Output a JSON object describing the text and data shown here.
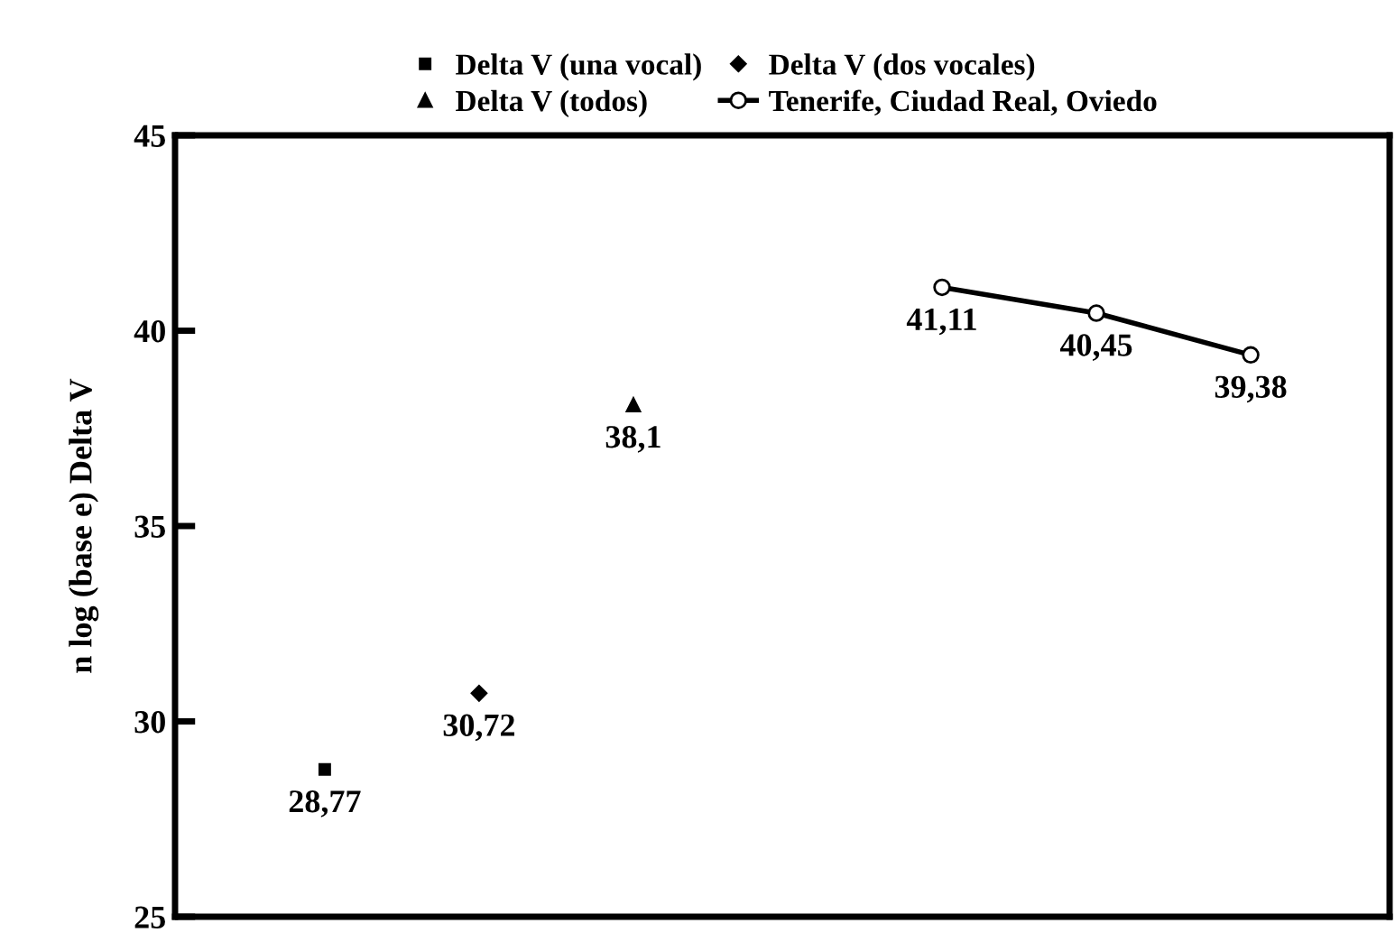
{
  "chart_data": {
    "type": "scatter",
    "ylabel": "n log (base e) Delta V",
    "categories": [
      null,
      null,
      null,
      null,
      null,
      null,
      null
    ],
    "ylim": [
      25,
      45
    ],
    "yticks": [
      25,
      30,
      35,
      40,
      45
    ],
    "tick_labels": "y",
    "grid": false,
    "legend": "top",
    "series": [
      {
        "name": "Delta V (una vocal)",
        "marker": "square",
        "color": "#000000",
        "values": [
          28.77,
          null,
          null,
          null,
          null,
          null,
          null
        ],
        "value_labels": [
          "28,77",
          null,
          null,
          null,
          null,
          null,
          null
        ]
      },
      {
        "name": "Delta V (dos vocales)",
        "marker": "diamond",
        "color": "#000000",
        "values": [
          null,
          30.72,
          null,
          null,
          null,
          null,
          null
        ],
        "value_labels": [
          null,
          "30,72",
          null,
          null,
          null,
          null,
          null
        ]
      },
      {
        "name": "Delta V (todos)",
        "marker": "triangle",
        "color": "#000000",
        "values": [
          null,
          null,
          38.1,
          null,
          null,
          null,
          null
        ],
        "value_labels": [
          null,
          null,
          "38,1",
          null,
          null,
          null,
          null
        ]
      },
      {
        "name": "Tenerife, Ciudad Real, Oviedo",
        "type": "line",
        "marker": "circle",
        "line_style": "solid",
        "color": "#000000",
        "values": [
          null,
          null,
          null,
          null,
          41.11,
          40.45,
          39.38
        ],
        "value_labels": [
          null,
          null,
          null,
          null,
          "41,11",
          "40,45",
          "39,38"
        ]
      }
    ]
  }
}
